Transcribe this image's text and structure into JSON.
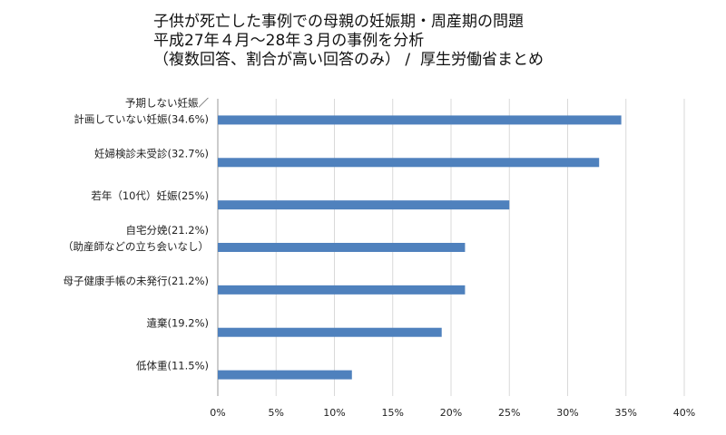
{
  "chart_data": {
    "type": "bar",
    "orientation": "horizontal",
    "title_lines": [
      "子供が死亡した事例での母親の妊娠期・周産期の問題",
      "平成27年４月～28年３月の事例を分析",
      "（複数回答、割合が高い回答のみ） /  厚生労働省まとめ"
    ],
    "categories": [
      [
        "予期しない妊娠／",
        "計画していない妊娠(34.6%)"
      ],
      [
        "妊婦検診未受診(32.7%)"
      ],
      [
        "若年（10代）妊娠(25%)"
      ],
      [
        "自宅分娩(21.2%)",
        "（助産師などの立ち会いなし）"
      ],
      [
        "母子健康手帳の未発行(21.2%)"
      ],
      [
        "遺棄(19.2%)"
      ],
      [
        "低体重(11.5%)"
      ]
    ],
    "values": [
      34.6,
      32.7,
      25,
      21.2,
      21.2,
      19.2,
      11.5
    ],
    "xlim": [
      0,
      40
    ],
    "xticks": [
      0,
      5,
      10,
      15,
      20,
      25,
      30,
      35,
      40
    ],
    "xtick_labels": [
      "0%",
      "5%",
      "10%",
      "15%",
      "20%",
      "25%",
      "30%",
      "35%",
      "40%"
    ],
    "xlabel": "",
    "ylabel": "",
    "grid": "vertical",
    "bar_color": "#4f81bd",
    "grid_color": "#d9d9d9"
  }
}
